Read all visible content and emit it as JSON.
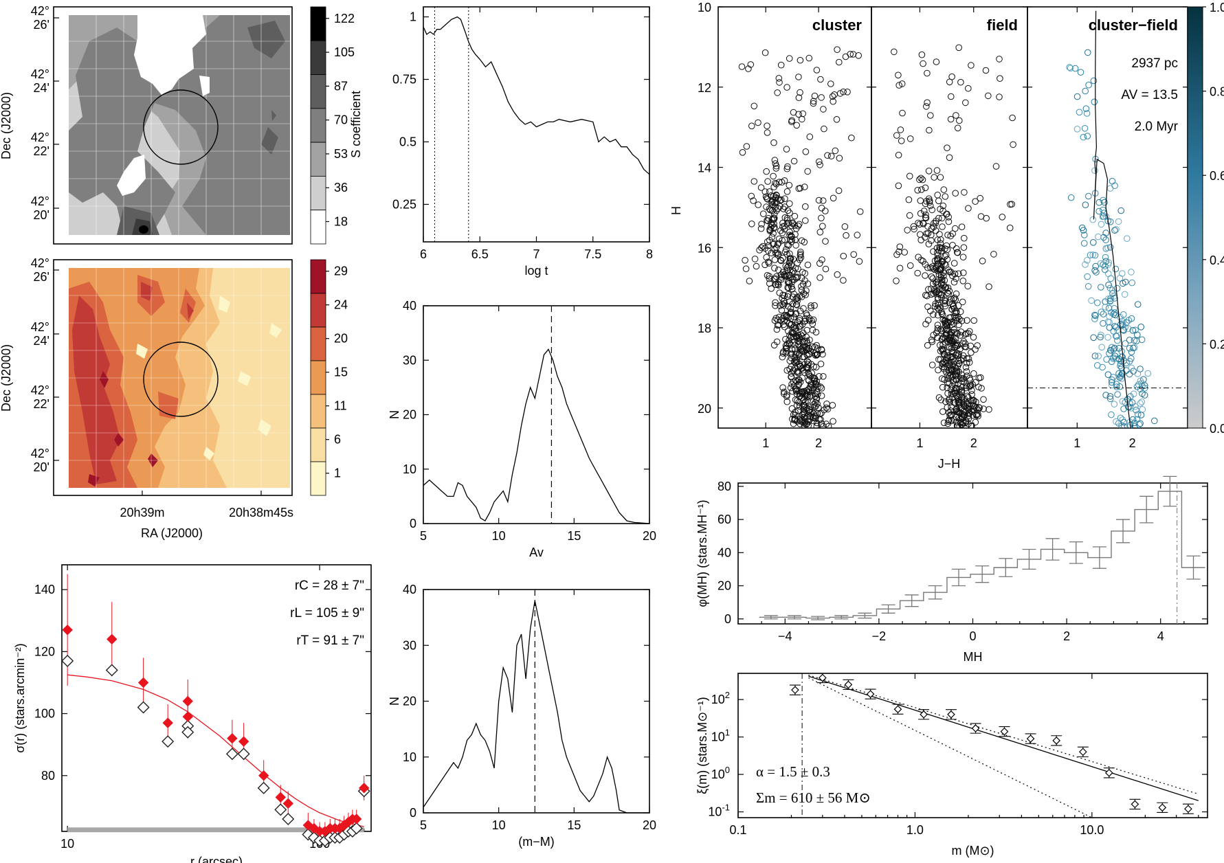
{
  "maps": [
    {
      "colorbar_ticks": [
        "122",
        "105",
        "87",
        "70",
        "53",
        "36",
        "18"
      ],
      "colors": [
        "#000000",
        "#3a3a3a",
        "#5e5e5e",
        "#7f7f7f",
        "#a3a3a3",
        "#cfcfcf",
        "#ffffff"
      ],
      "ylabel": "Dec (J2000)",
      "dec_ticks": [
        [
          "42°",
          "26'"
        ],
        [
          "42°",
          "24'"
        ],
        [
          "42°",
          "22'"
        ],
        [
          "42°",
          "20'"
        ]
      ]
    },
    {
      "colorbar_ticks": [
        "29",
        "24",
        "20",
        "15",
        "11",
        "6",
        "1"
      ],
      "colors": [
        "#9e1327",
        "#c23a36",
        "#d9643f",
        "#eb9a55",
        "#f4c07b",
        "#fadfa5",
        "#fdf6c8"
      ],
      "ylabel": "Dec (J2000)",
      "dec_ticks": [
        [
          "42°",
          "26'"
        ],
        [
          "42°",
          "24'"
        ],
        [
          "42°",
          "22'"
        ],
        [
          "42°",
          "20'"
        ]
      ],
      "ra_ticks": [
        "20h39m",
        "20h38m45s"
      ],
      "xlabel": "RA (J2000)"
    }
  ],
  "chart_data": [
    {
      "id": "rdp",
      "type": "scatter",
      "xlabel": "r (arcsec)",
      "ylabel": "σ(r) (stars.arcmin⁻²)",
      "xscale": "log",
      "xlim": [
        9.5,
        160
      ],
      "ylim": [
        62,
        148
      ],
      "xticks": [
        10,
        100
      ],
      "yticks": [
        80,
        100,
        120,
        140
      ],
      "annotations": [
        "rC = 28 ± 7\"",
        "rL = 105 ± 9\"",
        "rT = 91 ± 7\""
      ],
      "background_level": 62.5,
      "series": [
        {
          "marker": "filled-diamond",
          "color": "#e8141e",
          "x": [
            10,
            15,
            20,
            25,
            30,
            30,
            45,
            50,
            60,
            70,
            75,
            90,
            95,
            100,
            105,
            110,
            115,
            120,
            125,
            130,
            135,
            140,
            150
          ],
          "y": [
            127,
            124,
            110,
            97,
            104,
            99,
            92,
            91,
            80,
            73,
            71,
            64,
            63,
            62,
            62,
            63,
            63,
            63,
            64,
            65,
            66,
            66,
            76
          ],
          "err": [
            18,
            12,
            8,
            6,
            7,
            7,
            6,
            6,
            5,
            4,
            4,
            4,
            3,
            3,
            3,
            3,
            3,
            3,
            3,
            3,
            3,
            3,
            4
          ]
        },
        {
          "marker": "open-diamond",
          "color": "#222222",
          "x": [
            10,
            15,
            20,
            25,
            30,
            30,
            45,
            50,
            60,
            70,
            75,
            90,
            95,
            100,
            105,
            110,
            115,
            120,
            125,
            130,
            135,
            140,
            150
          ],
          "y": [
            117,
            114,
            102,
            91,
            96,
            94,
            87,
            87,
            76,
            69,
            66,
            61,
            60,
            59,
            59,
            60,
            60,
            60,
            61,
            62,
            62,
            63,
            75
          ]
        },
        {
          "name": "",
          "type": "line",
          "color": "#e8141e",
          "x": [
            10,
            12,
            15,
            20,
            25,
            30,
            40,
            50,
            60,
            70,
            80,
            90,
            100,
            120,
            150
          ],
          "y": [
            112.5,
            111.8,
            110.6,
            107.8,
            104.4,
            100.6,
            92.9,
            86,
            80.4,
            76,
            72.6,
            70,
            68,
            65.5,
            63.5
          ]
        }
      ]
    },
    {
      "id": "scoef",
      "type": "line",
      "xlabel": "log t",
      "ylabel": "S coefficient",
      "xlim": [
        6.0,
        8.0
      ],
      "ylim": [
        0.1,
        1.04
      ],
      "xticks": [
        6.0,
        6.5,
        7.0,
        7.5,
        8.0
      ],
      "yticks": [
        0.25,
        0.5,
        0.75,
        1.0
      ],
      "vlines": [
        6.1,
        6.4
      ],
      "x": [
        6.0,
        6.03,
        6.06,
        6.09,
        6.12,
        6.15,
        6.2,
        6.25,
        6.3,
        6.33,
        6.37,
        6.4,
        6.43,
        6.46,
        6.5,
        6.55,
        6.6,
        6.65,
        6.7,
        6.75,
        6.8,
        6.85,
        6.9,
        6.95,
        7.0,
        7.05,
        7.1,
        7.15,
        7.2,
        7.3,
        7.4,
        7.5,
        7.55,
        7.6,
        7.65,
        7.7,
        7.75,
        7.8,
        7.85,
        7.9,
        7.95,
        8.0
      ],
      "y": [
        0.96,
        0.93,
        0.94,
        0.93,
        0.95,
        0.95,
        0.97,
        0.99,
        1.0,
        0.99,
        0.94,
        0.9,
        0.87,
        0.85,
        0.83,
        0.8,
        0.82,
        0.77,
        0.72,
        0.66,
        0.62,
        0.59,
        0.57,
        0.58,
        0.56,
        0.57,
        0.58,
        0.58,
        0.59,
        0.58,
        0.59,
        0.58,
        0.5,
        0.52,
        0.5,
        0.51,
        0.48,
        0.48,
        0.45,
        0.43,
        0.39,
        0.37
      ]
    },
    {
      "id": "av",
      "type": "line",
      "xlabel": "Av",
      "ylabel": "N",
      "xlim": [
        5,
        20
      ],
      "ylim": [
        0,
        40
      ],
      "xticks": [
        5,
        10,
        15,
        20
      ],
      "yticks": [
        0,
        10,
        20,
        30,
        40
      ],
      "vline": 13.5,
      "x": [
        5,
        5.4,
        5.8,
        6.2,
        6.6,
        7,
        7.3,
        7.6,
        7.9,
        8.2,
        8.5,
        8.8,
        9.1,
        9.4,
        9.7,
        10,
        10.3,
        10.6,
        10.9,
        11.2,
        11.5,
        11.8,
        12.1,
        12.4,
        12.7,
        13,
        13.3,
        13.6,
        13.9,
        14.2,
        14.5,
        14.8,
        15.1,
        15.4,
        15.7,
        16,
        16.4,
        16.8,
        17.2,
        17.6,
        18,
        18.5,
        19,
        19.5,
        20
      ],
      "y": [
        7,
        8,
        7,
        6,
        5,
        5,
        7.5,
        7,
        5,
        4,
        3,
        1,
        0.5,
        2,
        4,
        5,
        6,
        4,
        9,
        13,
        18,
        22,
        25,
        23,
        27,
        31,
        32,
        30,
        27,
        25,
        22,
        20,
        18,
        16,
        14,
        12,
        10,
        8,
        6,
        4,
        2,
        0.5,
        0.2,
        0.1,
        0
      ]
    },
    {
      "id": "dm",
      "type": "line",
      "xlabel": "(m−M)",
      "ylabel": "N",
      "xlim": [
        5,
        20
      ],
      "ylim": [
        0,
        40
      ],
      "xticks": [
        5,
        10,
        15,
        20
      ],
      "yticks": [
        0,
        10,
        20,
        30,
        40
      ],
      "vline": 12.4,
      "x": [
        5,
        5.5,
        6,
        6.5,
        7,
        7.3,
        7.6,
        7.9,
        8.2,
        8.5,
        8.8,
        9.1,
        9.4,
        9.7,
        10,
        10.3,
        10.6,
        10.9,
        11.2,
        11.5,
        11.8,
        12.1,
        12.4,
        12.7,
        13,
        13.3,
        13.6,
        13.9,
        14.2,
        14.5,
        14.8,
        15.1,
        15.4,
        15.7,
        16,
        16.3,
        16.6,
        16.9,
        17.2,
        17.5,
        17.8,
        18,
        18.5,
        19,
        20
      ],
      "y": [
        1,
        3,
        5,
        7,
        9,
        8,
        10,
        13,
        14,
        16,
        14,
        13,
        11,
        8,
        20,
        26,
        24,
        18,
        30,
        32,
        24,
        33,
        38,
        34,
        30,
        26,
        22,
        18,
        13,
        10,
        8,
        6,
        4,
        3,
        2,
        3,
        5,
        7,
        10,
        8,
        4,
        0.5,
        0,
        0,
        0
      ]
    },
    {
      "id": "cmd",
      "type": "scatter",
      "xlabel": "J−H",
      "ylabel": "H",
      "panels": [
        "cluster",
        "field",
        "cluster−field"
      ],
      "xlim": [
        0.1,
        3.0
      ],
      "ylim": [
        20.5,
        10
      ],
      "xticks": [
        1,
        2
      ],
      "yticks": [
        10,
        12,
        14,
        16,
        18,
        20
      ],
      "annotations": [
        "2937 pc",
        "AV = 13.5",
        "2.0 Myr"
      ],
      "colorbar_ticks": [
        "1.0",
        "0.8",
        "0.6",
        "0.4",
        "0.2",
        "0.0"
      ],
      "hline": 19.5,
      "isochrone": {
        "x": [
          1.34,
          1.33,
          1.33,
          1.35,
          1.32,
          1.34,
          1.3,
          1.36,
          1.48,
          1.55,
          1.52,
          1.58,
          1.65,
          1.7,
          1.74,
          1.78,
          1.82,
          1.86,
          1.9,
          1.94,
          1.97
        ],
        "y": [
          10.1,
          11.5,
          12.5,
          13.5,
          13.9,
          14.2,
          15.3,
          13.8,
          13.9,
          14.3,
          15.0,
          15.5,
          16.2,
          16.9,
          17.5,
          18.0,
          18.6,
          19.2,
          19.7,
          20.2,
          20.5
        ]
      }
    },
    {
      "id": "lf",
      "type": "histogram",
      "xlabel": "MH",
      "ylabel": "φ(MH) (stars.MH⁻¹)",
      "xlim": [
        -5,
        5
      ],
      "ylim": [
        -3,
        82
      ],
      "xticks": [
        -4,
        -2,
        0,
        2,
        4
      ],
      "yticks": [
        0,
        20,
        40,
        60,
        80
      ],
      "vline": 4.35,
      "bin_centers": [
        -4.3,
        -3.8,
        -3.3,
        -2.8,
        -2.3,
        -1.8,
        -1.3,
        -0.8,
        -0.3,
        0.2,
        0.7,
        1.2,
        1.7,
        2.2,
        2.7,
        3.2,
        3.7,
        4.2,
        4.7
      ],
      "values": [
        1,
        1,
        0.5,
        1,
        2,
        6,
        11,
        16,
        25,
        27,
        31,
        36,
        42,
        40,
        37,
        53,
        66,
        77,
        31
      ],
      "errors": [
        1,
        1,
        1,
        1,
        1.5,
        2.5,
        3.5,
        4,
        5,
        5,
        5.5,
        6,
        6.5,
        6.5,
        6.5,
        7,
        8,
        9,
        7
      ]
    },
    {
      "id": "mf",
      "type": "scatter",
      "xlabel": "m (M⊙)",
      "ylabel": "ξ(m) (stars.M⊙⁻¹)",
      "xscale": "log",
      "yscale": "log",
      "xlim": [
        0.1,
        45
      ],
      "ylim": [
        0.07,
        500
      ],
      "xticks": [
        0.1,
        1.0,
        10.0
      ],
      "xtick_labels": [
        "0.1",
        "1.0",
        "10.0"
      ],
      "yticks": [
        0.1,
        1,
        10,
        100
      ],
      "vline": 0.23,
      "annotations": [
        "α = 1.5 ± 0.3",
        "Σm = 610 ± 56 M⊙"
      ],
      "x": [
        0.21,
        0.3,
        0.42,
        0.56,
        0.8,
        1.12,
        1.6,
        2.2,
        3.2,
        4.5,
        6.3,
        8.9,
        12.5,
        17.5,
        25,
        35
      ],
      "y": [
        180,
        380,
        250,
        140,
        55,
        40,
        40,
        17,
        14,
        9,
        8,
        4,
        1.1,
        0.16,
        0.13,
        0.12
      ],
      "fit": {
        "x": [
          0.25,
          40
        ],
        "y": [
          420,
          0.2
        ]
      },
      "bounds": [
        {
          "x": [
            0.25,
            40
          ],
          "y": [
            450,
            0.3
          ]
        },
        {
          "x": [
            0.25,
            10
          ],
          "y": [
            380,
            0.07
          ]
        }
      ]
    }
  ]
}
